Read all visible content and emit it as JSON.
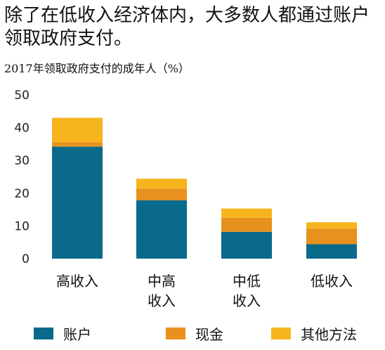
{
  "title": "除了在低收入经济体内，大多数人都通过账户领取政府支付。",
  "subtitle": "2017年领取政府支付的成年人（%）",
  "colors": {
    "account": "#0a6a8c",
    "cash": "#e8911f",
    "other": "#f6b51c",
    "axis_text": "#222222"
  },
  "chart_data": {
    "type": "bar",
    "stacked": true,
    "categories": [
      "高收入",
      "中高\n收入",
      "中低\n收入",
      "低收入"
    ],
    "series": [
      {
        "name": "账户",
        "values": [
          34.2,
          17.8,
          8.2,
          4.4
        ]
      },
      {
        "name": "现金",
        "values": [
          1.3,
          3.6,
          4.3,
          4.8
        ]
      },
      {
        "name": "其他方法",
        "values": [
          7.5,
          3.0,
          2.8,
          1.9
        ]
      }
    ],
    "yticks": [
      0,
      10,
      20,
      30,
      40,
      50
    ],
    "ylim": [
      0,
      50
    ],
    "grid": false,
    "legend_position": "bottom"
  },
  "legend": [
    {
      "label": "账户",
      "color": "#0a6a8c"
    },
    {
      "label": "现金",
      "color": "#e8911f"
    },
    {
      "label": "其他方法",
      "color": "#f6b51c"
    }
  ]
}
